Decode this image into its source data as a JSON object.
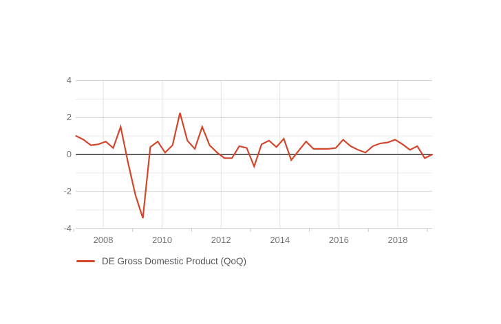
{
  "page": {
    "background": "#ffffff"
  },
  "chart_data": {
    "type": "line",
    "title": "",
    "series_name": "DE Gross Domestic Product (QoQ)",
    "unit": "percent, quarter over quarter",
    "legend_position": "bottom-left",
    "grid": true,
    "ylim": [
      -4,
      4
    ],
    "y_major_ticks": [
      4,
      2,
      0,
      -2,
      -4
    ],
    "y_minor_ticks": [
      3,
      1,
      -1,
      -3
    ],
    "x_year_gridlines": [
      2008,
      2010,
      2012,
      2014,
      2016,
      2018
    ],
    "x_minor_tick_years": [
      2007,
      2009,
      2011,
      2013,
      2015,
      2017,
      2019
    ],
    "x_range": [
      "2007-Q1",
      "2019-Q1"
    ],
    "quarters": [
      "2007-Q1",
      "2007-Q2",
      "2007-Q3",
      "2007-Q4",
      "2008-Q1",
      "2008-Q2",
      "2008-Q3",
      "2008-Q4",
      "2009-Q1",
      "2009-Q2",
      "2009-Q3",
      "2009-Q4",
      "2010-Q1",
      "2010-Q2",
      "2010-Q3",
      "2010-Q4",
      "2011-Q1",
      "2011-Q2",
      "2011-Q3",
      "2011-Q4",
      "2012-Q1",
      "2012-Q2",
      "2012-Q3",
      "2012-Q4",
      "2013-Q1",
      "2013-Q2",
      "2013-Q3",
      "2013-Q4",
      "2014-Q1",
      "2014-Q2",
      "2014-Q3",
      "2014-Q4",
      "2015-Q1",
      "2015-Q2",
      "2015-Q3",
      "2015-Q4",
      "2016-Q1",
      "2016-Q2",
      "2016-Q3",
      "2016-Q4",
      "2017-Q1",
      "2017-Q2",
      "2017-Q3",
      "2017-Q4",
      "2018-Q1",
      "2018-Q2",
      "2018-Q3",
      "2018-Q4",
      "2019-Q1"
    ],
    "values": [
      1.0,
      0.8,
      0.5,
      0.55,
      0.7,
      0.35,
      1.5,
      -0.45,
      -2.2,
      -3.45,
      0.4,
      0.7,
      0.1,
      0.5,
      2.25,
      0.75,
      0.3,
      1.5,
      0.5,
      0.1,
      -0.2,
      -0.2,
      0.45,
      0.35,
      -0.65,
      0.55,
      0.75,
      0.4,
      0.85,
      -0.3,
      0.2,
      0.7,
      0.3,
      0.3,
      0.3,
      0.35,
      0.8,
      0.45,
      0.25,
      0.1,
      0.45,
      0.6,
      0.65,
      0.8,
      0.55,
      0.25,
      0.45,
      -0.2,
      0.0
    ],
    "colors": {
      "line": "#d2462b",
      "zero_axis": "#616161",
      "grid_major": "#cccccc",
      "grid_minor": "#ebebeb",
      "grid_vertical": "#e0e0e0",
      "axis_tick": "#c7c7c7",
      "tick_text": "#757575",
      "legend_text": "#55565a",
      "background": "#ffffff"
    }
  }
}
